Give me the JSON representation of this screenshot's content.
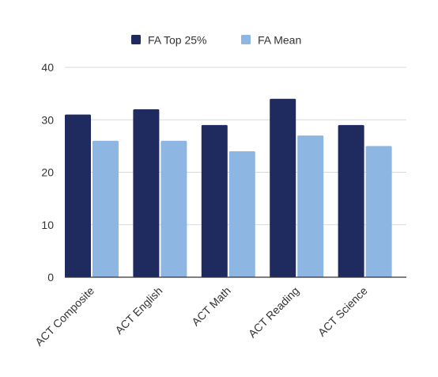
{
  "chart_data": {
    "type": "bar",
    "title": "",
    "xlabel": "",
    "ylabel": "",
    "categories": [
      "ACT Composite",
      "ACT English",
      "ACT Math",
      "ACT Reading",
      "ACT Science"
    ],
    "series": [
      {
        "name": "FA Top 25%",
        "values": [
          31,
          32,
          29,
          34,
          29
        ],
        "color": "#1f2a5e"
      },
      {
        "name": "FA Mean",
        "values": [
          26,
          26,
          24,
          27,
          25
        ],
        "color": "#8db6e2"
      }
    ],
    "ylim": [
      0,
      40
    ],
    "yticks": [
      0,
      10,
      20,
      30,
      40
    ],
    "grid": true,
    "legend_position": "top-center",
    "colors": {
      "grid": "#d9d9d9",
      "axis": "#333333",
      "text": "#333333"
    }
  }
}
